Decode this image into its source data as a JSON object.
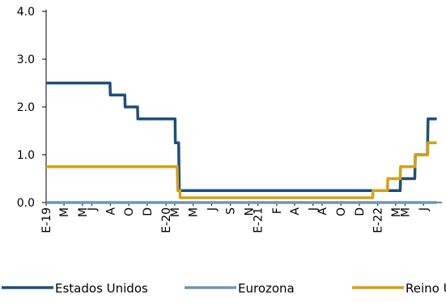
{
  "chart_data": {
    "type": "line",
    "title": "",
    "xlabel": "",
    "ylabel": "",
    "ylim": [
      0,
      4.0
    ],
    "yticks": [
      "0.0",
      "1.0",
      "2.0",
      "3.0",
      "4.0"
    ],
    "x_tick_labels": [
      "E-19",
      "M",
      "M",
      "J",
      "A",
      "O",
      "D",
      "E-20",
      "M",
      "M",
      "J",
      "S",
      "N",
      "E-21",
      "F",
      "A",
      "J",
      "A",
      "O",
      "D",
      "E-22",
      "M",
      "M",
      "J"
    ],
    "x_range_months": [
      "2019-01",
      "2022-07"
    ],
    "grid": false,
    "legend_position": "bottom",
    "series": [
      {
        "name": "Estados Unidos",
        "color": "#1f4e79",
        "points": [
          [
            "2019-01-01",
            2.5
          ],
          [
            "2019-07-31",
            2.5
          ],
          [
            "2019-08-01",
            2.25
          ],
          [
            "2019-09-18",
            2.25
          ],
          [
            "2019-09-19",
            2.0
          ],
          [
            "2019-10-30",
            2.0
          ],
          [
            "2019-10-31",
            1.75
          ],
          [
            "2020-03-02",
            1.75
          ],
          [
            "2020-03-03",
            1.25
          ],
          [
            "2020-03-14",
            1.25
          ],
          [
            "2020-03-16",
            0.25
          ],
          [
            "2022-03-16",
            0.25
          ],
          [
            "2022-03-17",
            0.5
          ],
          [
            "2022-05-03",
            0.5
          ],
          [
            "2022-05-05",
            1.0
          ],
          [
            "2022-06-14",
            1.0
          ],
          [
            "2022-06-16",
            1.75
          ],
          [
            "2022-07-15",
            1.75
          ]
        ]
      },
      {
        "name": "Eurozona",
        "color": "#6e96b8",
        "points": [
          [
            "2019-01-01",
            0.0
          ],
          [
            "2022-07-15",
            0.0
          ]
        ]
      },
      {
        "name": "Reino Unido",
        "color": "#d4a017",
        "points": [
          [
            "2019-01-01",
            0.75
          ],
          [
            "2020-03-09",
            0.75
          ],
          [
            "2020-03-11",
            0.25
          ],
          [
            "2020-03-18",
            0.25
          ],
          [
            "2020-03-19",
            0.1
          ],
          [
            "2021-12-15",
            0.1
          ],
          [
            "2021-12-16",
            0.25
          ],
          [
            "2022-02-02",
            0.25
          ],
          [
            "2022-02-03",
            0.5
          ],
          [
            "2022-03-16",
            0.5
          ],
          [
            "2022-03-17",
            0.75
          ],
          [
            "2022-05-04",
            0.75
          ],
          [
            "2022-05-05",
            1.0
          ],
          [
            "2022-06-15",
            1.0
          ],
          [
            "2022-06-16",
            1.25
          ],
          [
            "2022-07-15",
            1.25
          ]
        ]
      }
    ]
  }
}
